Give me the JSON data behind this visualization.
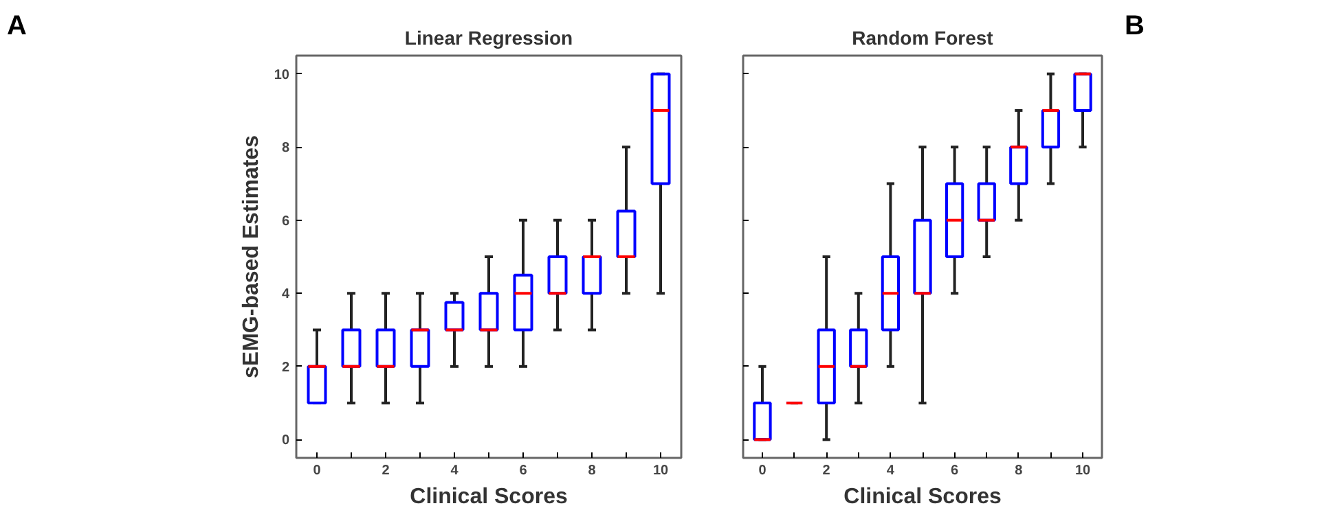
{
  "chart_data": [
    {
      "type": "box",
      "title": "Linear Regression",
      "xlabel": "Clinical Scores",
      "ylabel": "sEMG-based Estimates",
      "annotations": [
        "A"
      ],
      "categories": [
        "0",
        null,
        "2",
        null,
        "4",
        null,
        "6",
        null,
        "8",
        null,
        "10"
      ],
      "ylim": [
        -0.5,
        10.5
      ],
      "yticks": [
        0,
        2,
        4,
        6,
        8,
        10
      ],
      "grid": false,
      "series": [
        {
          "color": "#0000ff",
          "boxes": [
            {
              "low": 1,
              "q1": 1,
              "median": 2,
              "q3": 2,
              "high": 3
            },
            {
              "low": 1,
              "q1": 2,
              "median": 2,
              "q3": 3,
              "high": 4
            },
            {
              "low": 1,
              "q1": 2,
              "median": 2,
              "q3": 3,
              "high": 4
            },
            {
              "low": 1,
              "q1": 2,
              "median": 3,
              "q3": 3,
              "high": 4
            },
            {
              "low": 2,
              "q1": 3,
              "median": 3,
              "q3": 3.75,
              "high": 4
            },
            {
              "low": 2,
              "q1": 3,
              "median": 3,
              "q3": 4,
              "high": 5
            },
            {
              "low": 2,
              "q1": 3,
              "median": 4,
              "q3": 4.5,
              "high": 6
            },
            {
              "low": 3,
              "q1": 4,
              "median": 4,
              "q3": 5,
              "high": 6
            },
            {
              "low": 3,
              "q1": 4,
              "median": 5,
              "q3": 5,
              "high": 6
            },
            {
              "low": 4,
              "q1": 5,
              "median": 5,
              "q3": 6.25,
              "high": 8
            },
            {
              "low": 4,
              "q1": 7,
              "median": 9,
              "q3": 10,
              "high": 10
            }
          ]
        }
      ]
    },
    {
      "type": "box",
      "title": "Random Forest",
      "xlabel": "Clinical Scores",
      "annotations": [
        "B"
      ],
      "categories": [
        "0",
        null,
        "2",
        null,
        "4",
        null,
        "6",
        null,
        "8",
        null,
        "10"
      ],
      "ylim": [
        -0.5,
        10.5
      ],
      "yticks": [
        0,
        2,
        4,
        6,
        8,
        10
      ],
      "grid": false,
      "tick_labels": "x",
      "series": [
        {
          "color": "#0000ff",
          "boxes": [
            {
              "low": 0,
              "q1": 0,
              "median": 0,
              "q3": 1,
              "high": 2
            },
            {
              "low": 1,
              "q1": 1,
              "median": 1,
              "q3": 1,
              "high": 1
            },
            {
              "low": 0,
              "q1": 1,
              "median": 2,
              "q3": 3,
              "high": 5
            },
            {
              "low": 1,
              "q1": 2,
              "median": 2,
              "q3": 3,
              "high": 4
            },
            {
              "low": 2,
              "q1": 3,
              "median": 4,
              "q3": 5,
              "high": 7
            },
            {
              "low": 1,
              "q1": 4,
              "median": 4,
              "q3": 6,
              "high": 8
            },
            {
              "low": 4,
              "q1": 5,
              "median": 6,
              "q3": 7,
              "high": 8
            },
            {
              "low": 5,
              "q1": 6,
              "median": 6,
              "q3": 7,
              "high": 8
            },
            {
              "low": 6,
              "q1": 7,
              "median": 8,
              "q3": 8,
              "high": 9
            },
            {
              "low": 7,
              "q1": 8,
              "median": 9,
              "q3": 9,
              "high": 10
            },
            {
              "low": 8,
              "q1": 9,
              "median": 10,
              "q3": 10,
              "high": 10
            }
          ]
        }
      ]
    }
  ]
}
